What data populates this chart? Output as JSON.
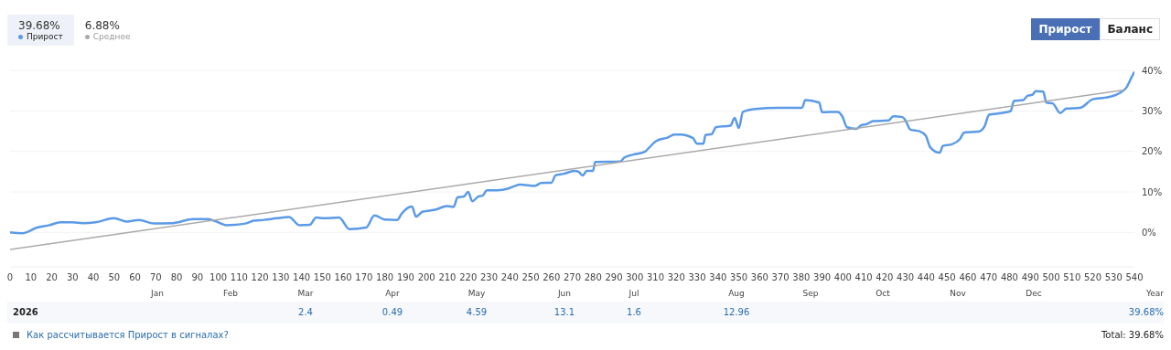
{
  "chart_data": {
    "type": "line",
    "xlim": [
      0,
      540
    ],
    "xticks": [
      0,
      10,
      20,
      30,
      40,
      50,
      60,
      70,
      80,
      90,
      100,
      110,
      120,
      130,
      140,
      150,
      160,
      170,
      180,
      190,
      200,
      210,
      220,
      230,
      240,
      250,
      260,
      270,
      280,
      290,
      300,
      310,
      320,
      330,
      340,
      350,
      360,
      370,
      380,
      390,
      400,
      410,
      420,
      430,
      440,
      450,
      460,
      470,
      480,
      490,
      500,
      510,
      520,
      530,
      540
    ],
    "ylim": [
      -8.5,
      40.5
    ],
    "yticks": [
      {
        "value": 0,
        "label": "0%"
      },
      {
        "value": 10,
        "label": "10%"
      },
      {
        "value": 20,
        "label": "20%"
      },
      {
        "value": 30,
        "label": "30%"
      },
      {
        "value": 40,
        "label": "40%"
      }
    ],
    "grid": "y",
    "legend": "top left",
    "marker": "none",
    "line_style": "solid",
    "series": [
      {
        "name": "Прирост",
        "color": "#5a9ae6",
        "x": [
          0,
          6,
          13,
          19,
          24,
          30,
          35,
          41,
          50,
          56,
          62,
          69,
          78,
          88,
          95,
          98,
          104,
          113,
          117,
          122,
          128,
          134,
          139,
          144,
          147,
          151,
          158,
          163,
          171,
          175,
          180,
          186,
          188,
          193,
          195,
          198,
          204,
          210,
          213,
          215,
          218,
          220,
          222,
          225,
          227,
          229,
          234,
          239,
          242,
          245,
          252,
          255,
          260,
          262,
          266,
          271,
          273,
          275,
          277,
          280,
          281,
          293,
          295,
          299,
          305,
          307,
          310,
          316,
          319,
          322,
          328,
          330,
          333,
          334,
          337,
          339,
          346,
          348,
          350,
          352,
          358,
          369,
          380.4,
          381.9,
          388.6,
          390,
          397.5,
          399.7,
          402,
          406.4,
          408.6,
          411.6,
          414.5,
          422,
          424.2,
          428.6,
          430,
          432.4,
          436.8,
          439.8,
          442,
          446.5,
          448,
          452.4,
          456.1,
          458.3,
          465,
          468,
          470.2,
          476.2,
          480.6,
          482.1,
          486.6,
          488.8,
          491,
          492.5,
          496.2,
          497.7,
          500.7,
          504.4,
          507.3,
          514,
          520,
          525.9,
          531.1,
          536.3,
          538.5,
          540
        ],
        "values": [
          0,
          -0.2,
          1.2,
          1.8,
          2.5,
          2.5,
          2.3,
          2.5,
          3.5,
          2.7,
          3.1,
          2.2,
          2.3,
          3.3,
          3.3,
          2.9,
          1.8,
          2.2,
          2.9,
          3.1,
          3.5,
          3.8,
          1.8,
          1.9,
          3.7,
          3.5,
          3.7,
          0.8,
          1.2,
          4.2,
          3.2,
          3.1,
          4.6,
          6.4,
          3.9,
          5.1,
          5.6,
          6.5,
          6.3,
          8.7,
          8.9,
          10,
          7.7,
          8.9,
          9.1,
          10.4,
          10.4,
          10.8,
          11.4,
          11.8,
          11.5,
          12.2,
          12.3,
          14.1,
          14.5,
          15.2,
          15,
          14.1,
          15.2,
          15.2,
          17.4,
          17.5,
          18.5,
          19.2,
          20,
          21,
          22.5,
          23.5,
          24.2,
          24.2,
          23.3,
          21.9,
          21.9,
          24.1,
          24.3,
          26,
          26.4,
          28.3,
          25.8,
          29.8,
          30.5,
          30.8,
          30.8,
          32.7,
          32.1,
          29.7,
          29.8,
          28.7,
          26,
          25.6,
          26.4,
          26.8,
          27.5,
          27.7,
          28.7,
          28.5,
          27.7,
          25.4,
          25,
          23.9,
          21,
          19.7,
          21.4,
          21.8,
          23,
          24.7,
          24.9,
          26.2,
          29.1,
          29.5,
          30,
          32.5,
          32.7,
          33.8,
          34,
          34.9,
          34.8,
          32.1,
          31.9,
          29.5,
          30.6,
          30.8,
          32.9,
          33.3,
          34,
          35.9,
          38.2,
          39.7
        ]
      },
      {
        "name": "Среднее",
        "color": "#aaaaaa",
        "x": [
          0,
          535
        ],
        "values": [
          -4.2,
          35.2
        ]
      }
    ],
    "annotations": [
      "39.68%",
      "6.88%",
      "Прирост",
      "Баланс",
      "Jan",
      "Feb",
      "Mar",
      "Apr",
      "May",
      "Jun",
      "Jul",
      "Aug",
      "Sep",
      "Oct",
      "Nov",
      "Dec",
      "Year",
      "2026",
      "2.4",
      "0.49",
      "4.59",
      "13.1",
      "1.6",
      "12.96",
      "39.68%",
      "Как рассчитывается Прирост в сигналах?",
      "Total: 39.68%"
    ]
  }
}
